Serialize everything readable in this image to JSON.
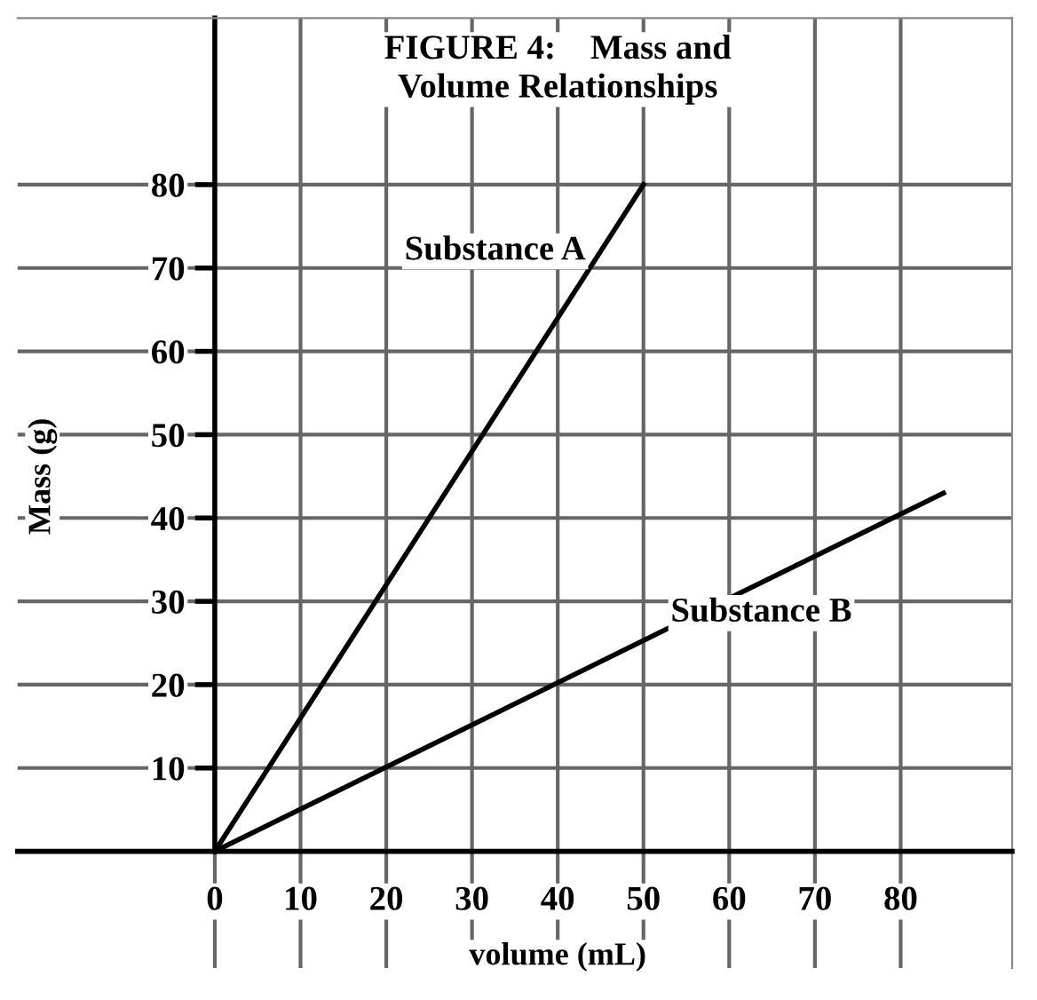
{
  "chart_data": {
    "type": "line",
    "title": "FIGURE 4:    Mass and\nVolume Relationships",
    "xlabel": "volume (mL)",
    "ylabel": "Mass (g)",
    "series": [
      {
        "name": "Substance A",
        "color": "#000000",
        "x": [
          0,
          50
        ],
        "values": [
          0,
          80
        ]
      },
      {
        "name": "Substance B",
        "color": "#000000",
        "x": [
          0,
          85
        ],
        "values": [
          0,
          43
        ]
      }
    ],
    "xlim": [
      -23,
      93
    ],
    "ylim": [
      -14,
      100
    ],
    "xticks": [
      0,
      10,
      20,
      30,
      40,
      50,
      60,
      70,
      80
    ],
    "yticks": [
      10,
      20,
      30,
      40,
      50,
      60,
      70,
      80
    ],
    "grid": true,
    "marker": "none",
    "line_style": "solid"
  }
}
